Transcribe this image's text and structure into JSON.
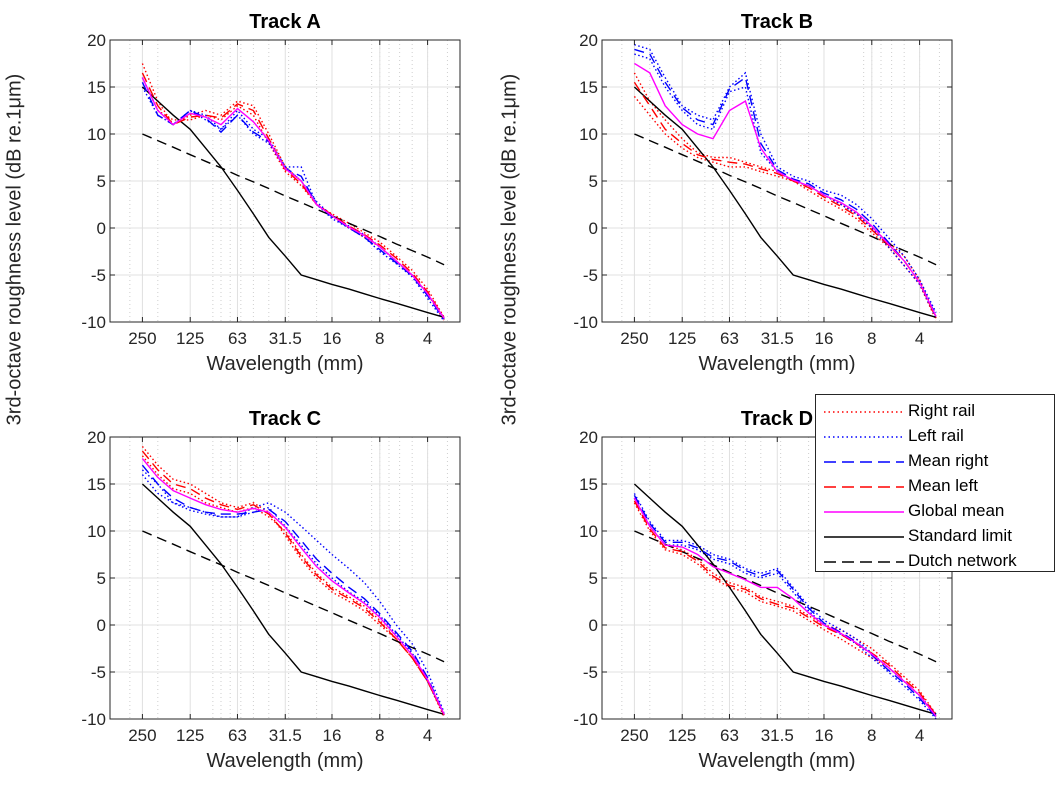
{
  "figure": {
    "ylabel": "3rd-octave roughness level (dB re.1μm)"
  },
  "legend": [
    {
      "label": "Right rail",
      "color": "#ff0000",
      "style": "dotted"
    },
    {
      "label": "Left rail",
      "color": "#0000ff",
      "style": "dotted"
    },
    {
      "label": "Mean right",
      "color": "#0000ff",
      "style": "dashed"
    },
    {
      "label": "Mean left",
      "color": "#ff0000",
      "style": "dashed"
    },
    {
      "label": "Global mean",
      "color": "#ff00ff",
      "style": "solid"
    },
    {
      "label": "Standard limit",
      "color": "#000000",
      "style": "solid"
    },
    {
      "label": "Dutch network",
      "color": "#000000",
      "style": "dashed"
    }
  ],
  "chart_data": [
    {
      "type": "line",
      "title": "Track A",
      "xlabel": "Wavelength (mm)",
      "x_scale": "log-reversed",
      "xlim": [
        400,
        2.5
      ],
      "ylim": [
        -10,
        20
      ],
      "xticks": [
        "250",
        "125",
        "63",
        "31.5",
        "16",
        "8",
        "4"
      ],
      "yticks": [
        "20",
        "15",
        "10",
        "5",
        "0",
        "-5",
        "-10"
      ],
      "grid": true,
      "x": [
        250,
        200,
        160,
        125,
        100,
        80,
        63,
        50,
        40,
        31.5,
        25,
        20,
        16,
        12.5,
        10,
        8,
        6.3,
        5,
        4,
        3.15
      ],
      "series": [
        {
          "name": "Right rail",
          "values": [
            17.5,
            13.5,
            11,
            12,
            12.5,
            12,
            13.5,
            13,
            10,
            6.5,
            5,
            2.5,
            1.5,
            0.5,
            -0.5,
            -1.5,
            -3,
            -4.5,
            -6.5,
            -9.5
          ]
        },
        {
          "name": "Right rail",
          "values": [
            16,
            12.5,
            11.5,
            11.5,
            12,
            11.5,
            13,
            12,
            9,
            6,
            4.5,
            2.5,
            1.3,
            0,
            -1,
            -2,
            -3.5,
            -5,
            -7,
            -9.8
          ]
        },
        {
          "name": "Left rail",
          "values": [
            15,
            12,
            11,
            12.5,
            12,
            10.5,
            12.5,
            10.5,
            9.5,
            6.5,
            5,
            2.8,
            1.3,
            0.2,
            -0.7,
            -2,
            -3.6,
            -5,
            -7,
            -9.6
          ]
        },
        {
          "name": "Left rail",
          "values": [
            16,
            12.5,
            11,
            12.5,
            11.5,
            10.5,
            12,
            10,
            9,
            6.5,
            6.5,
            2.5,
            1,
            0,
            -1,
            -2.5,
            -3.8,
            -5.2,
            -7.5,
            -9.9
          ]
        },
        {
          "name": "Mean right",
          "values": [
            15.5,
            12,
            11,
            12.5,
            11.7,
            10.2,
            12,
            10.2,
            9.2,
            6.3,
            5.5,
            2.5,
            1.2,
            0,
            -1,
            -2.3,
            -3.7,
            -5.1,
            -7.2,
            -9.7
          ]
        },
        {
          "name": "Mean left",
          "values": [
            16.5,
            13,
            11,
            11.8,
            12,
            11.7,
            13.2,
            12.5,
            9.5,
            6.2,
            4.7,
            2.5,
            1.4,
            0.2,
            -0.7,
            -1.8,
            -3.2,
            -4.8,
            -6.8,
            -9.6
          ]
        },
        {
          "name": "Global mean",
          "values": [
            16,
            12.5,
            11,
            12.2,
            11.8,
            11,
            12.7,
            11.3,
            9.3,
            6.3,
            5,
            2.5,
            1.3,
            0.1,
            -0.8,
            -2,
            -3.5,
            -5,
            -7,
            -9.6
          ]
        },
        {
          "name": "Standard limit",
          "values": [
            15,
            13.5,
            12,
            10.5,
            8.5,
            6.5,
            4,
            1.5,
            -1,
            -3,
            -5,
            -5.5,
            -6,
            -6.5,
            -7,
            -7.5,
            -8,
            -8.5,
            -9,
            -9.5
          ]
        },
        {
          "name": "Dutch network",
          "values": [
            10,
            9.3,
            8.6,
            7.8,
            7.1,
            6.4,
            5.6,
            4.9,
            4.2,
            3.4,
            2.7,
            2,
            1.3,
            0.5,
            -0.2,
            -0.9,
            -1.7,
            -2.4,
            -3.1,
            -3.9
          ]
        }
      ]
    },
    {
      "type": "line",
      "title": "Track B",
      "xlabel": "Wavelength (mm)",
      "x_scale": "log-reversed",
      "xlim": [
        400,
        2.5
      ],
      "ylim": [
        -10,
        20
      ],
      "xticks": [
        "250",
        "125",
        "63",
        "31.5",
        "16",
        "8",
        "4"
      ],
      "yticks": [
        "20",
        "15",
        "10",
        "5",
        "0",
        "-5",
        "-10"
      ],
      "grid": true,
      "x": [
        250,
        200,
        160,
        125,
        100,
        80,
        63,
        50,
        40,
        31.5,
        25,
        20,
        16,
        12.5,
        10,
        8,
        6.3,
        5,
        4,
        3.15
      ],
      "series": [
        {
          "name": "Right rail",
          "values": [
            16.5,
            13.5,
            11.5,
            9.5,
            8,
            7.5,
            7.5,
            7,
            6.5,
            6,
            5,
            4.5,
            3.5,
            2.5,
            1.5,
            0,
            -1.5,
            -3,
            -5.5,
            -9.5
          ]
        },
        {
          "name": "Right rail",
          "values": [
            14,
            12,
            10,
            8.5,
            7.5,
            7,
            6.5,
            6.5,
            6,
            5.5,
            5,
            4,
            3,
            2,
            1,
            -0.5,
            -2,
            -4,
            -6,
            -9.8
          ]
        },
        {
          "name": "Left rail",
          "values": [
            19.5,
            19,
            16,
            13,
            12,
            11.5,
            15,
            16.5,
            10,
            6.5,
            5.5,
            5,
            4,
            3.5,
            2.5,
            1,
            -1,
            -3,
            -5.5,
            -9
          ]
        },
        {
          "name": "Left rail",
          "values": [
            18.5,
            18,
            15,
            12.5,
            11,
            10.5,
            14.5,
            15,
            8,
            6,
            5,
            4.5,
            3.5,
            2.5,
            1.5,
            0,
            -2,
            -4,
            -6,
            -9.6
          ]
        },
        {
          "name": "Mean right",
          "values": [
            19,
            18.5,
            15.5,
            12.8,
            11.5,
            11,
            14.8,
            16,
            9,
            6.2,
            5.2,
            4.7,
            3.7,
            3,
            2,
            0.5,
            -1.5,
            -3.5,
            -5.8,
            -9.3
          ]
        },
        {
          "name": "Mean left",
          "values": [
            15.5,
            13,
            10.5,
            9,
            7.8,
            7.3,
            7,
            6.8,
            6.3,
            5.8,
            5,
            4.3,
            3.3,
            2.3,
            1.3,
            -0.2,
            -1.8,
            -3.5,
            -5.8,
            -9.6
          ]
        },
        {
          "name": "Global mean",
          "values": [
            17.5,
            16.5,
            13,
            11,
            10,
            9.5,
            12.5,
            13.5,
            8.5,
            6,
            5.1,
            4.5,
            3.5,
            2.7,
            1.7,
            0.2,
            -1.7,
            -3.5,
            -5.8,
            -9.4
          ]
        },
        {
          "name": "Standard limit",
          "values": [
            15,
            13.5,
            12,
            10.5,
            8.5,
            6.5,
            4,
            1.5,
            -1,
            -3,
            -5,
            -5.5,
            -6,
            -6.5,
            -7,
            -7.5,
            -8,
            -8.5,
            -9,
            -9.5
          ]
        },
        {
          "name": "Dutch network",
          "values": [
            10,
            9.3,
            8.6,
            7.8,
            7.1,
            6.4,
            5.6,
            4.9,
            4.2,
            3.4,
            2.7,
            2,
            1.3,
            0.5,
            -0.2,
            -0.9,
            -1.7,
            -2.4,
            -3.1,
            -3.9
          ]
        }
      ]
    },
    {
      "type": "line",
      "title": "Track C",
      "xlabel": "Wavelength (mm)",
      "x_scale": "log-reversed",
      "xlim": [
        400,
        2.5
      ],
      "ylim": [
        -10,
        20
      ],
      "xticks": [
        "250",
        "125",
        "63",
        "31.5",
        "16",
        "8",
        "4"
      ],
      "yticks": [
        "20",
        "15",
        "10",
        "5",
        "0",
        "-5",
        "-10"
      ],
      "grid": true,
      "x": [
        250,
        200,
        160,
        125,
        100,
        80,
        63,
        50,
        40,
        31.5,
        25,
        20,
        16,
        12.5,
        10,
        8,
        6.3,
        5,
        4,
        3.15
      ],
      "series": [
        {
          "name": "Right rail",
          "values": [
            19,
            17,
            15.5,
            15,
            14,
            13,
            12.5,
            13,
            12,
            9.5,
            7,
            5,
            3.5,
            2.5,
            1.5,
            0,
            -1.5,
            -3.5,
            -6,
            -9.5
          ]
        },
        {
          "name": "Right rail",
          "values": [
            18,
            16,
            14.5,
            14,
            13,
            12.5,
            12,
            12.5,
            11.5,
            10,
            7.5,
            5.5,
            4,
            3,
            2,
            0.5,
            -1.5,
            -3.5,
            -6,
            -9.8
          ]
        },
        {
          "name": "Left rail",
          "values": [
            16.5,
            15,
            13,
            12.5,
            12,
            11.5,
            11.5,
            12.5,
            13,
            12,
            10.5,
            9,
            7.5,
            6,
            4.5,
            2.5,
            0,
            -2,
            -5,
            -9.3
          ]
        },
        {
          "name": "Left rail",
          "values": [
            16,
            14,
            13,
            12.2,
            11.8,
            11.5,
            11.5,
            12,
            12.5,
            10.5,
            8.5,
            6.5,
            5,
            3.5,
            2.5,
            1,
            -1,
            -3,
            -6,
            -9.6
          ]
        },
        {
          "name": "Mean right",
          "values": [
            17,
            15,
            13.5,
            12.5,
            12,
            11.8,
            11.8,
            12,
            12.3,
            11,
            9,
            7,
            5.5,
            4,
            2.8,
            1.2,
            -0.8,
            -2.8,
            -5.6,
            -9.5
          ]
        },
        {
          "name": "Mean left",
          "values": [
            18.5,
            16.5,
            15,
            14.5,
            13.5,
            12.8,
            12.3,
            12.8,
            11.8,
            9.8,
            7.3,
            5.3,
            3.8,
            2.8,
            1.8,
            0.3,
            -1.5,
            -3.5,
            -6,
            -9.6
          ]
        },
        {
          "name": "Global mean",
          "values": [
            17.7,
            15.7,
            14.3,
            13.5,
            12.8,
            12.3,
            12,
            12.4,
            12,
            10.4,
            8.2,
            6.2,
            4.7,
            3.4,
            2.3,
            0.8,
            -1.2,
            -3.2,
            -5.8,
            -9.5
          ]
        },
        {
          "name": "Standard limit",
          "values": [
            15,
            13.5,
            12,
            10.5,
            8.5,
            6.5,
            4,
            1.5,
            -1,
            -3,
            -5,
            -5.5,
            -6,
            -6.5,
            -7,
            -7.5,
            -8,
            -8.5,
            -9,
            -9.5
          ]
        },
        {
          "name": "Dutch network",
          "values": [
            10,
            9.3,
            8.6,
            7.8,
            7.1,
            6.4,
            5.6,
            4.9,
            4.2,
            3.4,
            2.7,
            2,
            1.3,
            0.5,
            -0.2,
            -0.9,
            -1.7,
            -2.4,
            -3.1,
            -3.9
          ]
        }
      ]
    },
    {
      "type": "line",
      "title": "Track D",
      "xlabel": "Wavelength (mm)",
      "x_scale": "log-reversed",
      "xlim": [
        400,
        2.5
      ],
      "ylim": [
        -10,
        20
      ],
      "xticks": [
        "250",
        "125",
        "63",
        "31.5",
        "16",
        "8",
        "4"
      ],
      "yticks": [
        "20",
        "15",
        "10",
        "5",
        "0",
        "-5",
        "-10"
      ],
      "grid": true,
      "x": [
        250,
        200,
        160,
        125,
        100,
        80,
        63,
        50,
        40,
        31.5,
        25,
        20,
        16,
        12.5,
        10,
        8,
        6.3,
        5,
        4,
        3.15
      ],
      "series": [
        {
          "name": "Right rail",
          "values": [
            13.5,
            10.5,
            8.5,
            8,
            7,
            5.5,
            4.5,
            4,
            3,
            2.5,
            2,
            1,
            0,
            -0.5,
            -1.5,
            -2.5,
            -4,
            -5.5,
            -7,
            -9.5
          ]
        },
        {
          "name": "Right rail",
          "values": [
            13,
            10,
            8,
            7.5,
            6.5,
            5,
            4,
            3.5,
            2.5,
            2,
            1.5,
            0.5,
            -0.5,
            -1.5,
            -2.5,
            -3.5,
            -4.5,
            -6,
            -7.5,
            -9.8
          ]
        },
        {
          "name": "Left rail",
          "values": [
            14,
            11,
            9,
            9,
            8.5,
            7.5,
            7,
            6,
            5.5,
            6,
            4,
            2,
            0.5,
            -0.5,
            -1.5,
            -3,
            -4.5,
            -6,
            -7.5,
            -9.5
          ]
        },
        {
          "name": "Left rail",
          "values": [
            13.5,
            10.5,
            8.5,
            8.5,
            8,
            7,
            6.5,
            5.5,
            5,
            5.5,
            3.5,
            1.5,
            0,
            -1,
            -2,
            -3.5,
            -5,
            -6.5,
            -8,
            -10
          ]
        },
        {
          "name": "Mean right",
          "values": [
            13.8,
            10.8,
            8.8,
            8.8,
            8.2,
            7.2,
            6.8,
            5.8,
            5.2,
            5.8,
            3.8,
            1.8,
            0.2,
            -0.8,
            -1.8,
            -3.2,
            -4.8,
            -6.2,
            -7.8,
            -9.8
          ]
        },
        {
          "name": "Mean left",
          "values": [
            13.2,
            10.2,
            8.2,
            7.8,
            6.8,
            5.2,
            4.2,
            3.8,
            2.8,
            2.2,
            1.8,
            0.8,
            -0.2,
            -1,
            -2,
            -3,
            -4.2,
            -5.8,
            -7.2,
            -9.6
          ]
        },
        {
          "name": "Global mean",
          "values": [
            13.5,
            10.5,
            8.5,
            8.3,
            7.5,
            6.2,
            5.5,
            4.8,
            4,
            4,
            2.8,
            1.3,
            0,
            -0.9,
            -1.9,
            -3.1,
            -4.5,
            -6,
            -7.5,
            -9.7
          ]
        },
        {
          "name": "Standard limit",
          "values": [
            15,
            13.5,
            12,
            10.5,
            8.5,
            6.5,
            4,
            1.5,
            -1,
            -3,
            -5,
            -5.5,
            -6,
            -6.5,
            -7,
            -7.5,
            -8,
            -8.5,
            -9,
            -9.5
          ]
        },
        {
          "name": "Dutch network",
          "values": [
            10,
            9.3,
            8.6,
            7.8,
            7.1,
            6.4,
            5.6,
            4.9,
            4.2,
            3.4,
            2.7,
            2,
            1.3,
            0.5,
            -0.2,
            -0.9,
            -1.7,
            -2.4,
            -3.1,
            -3.9
          ]
        }
      ]
    }
  ]
}
